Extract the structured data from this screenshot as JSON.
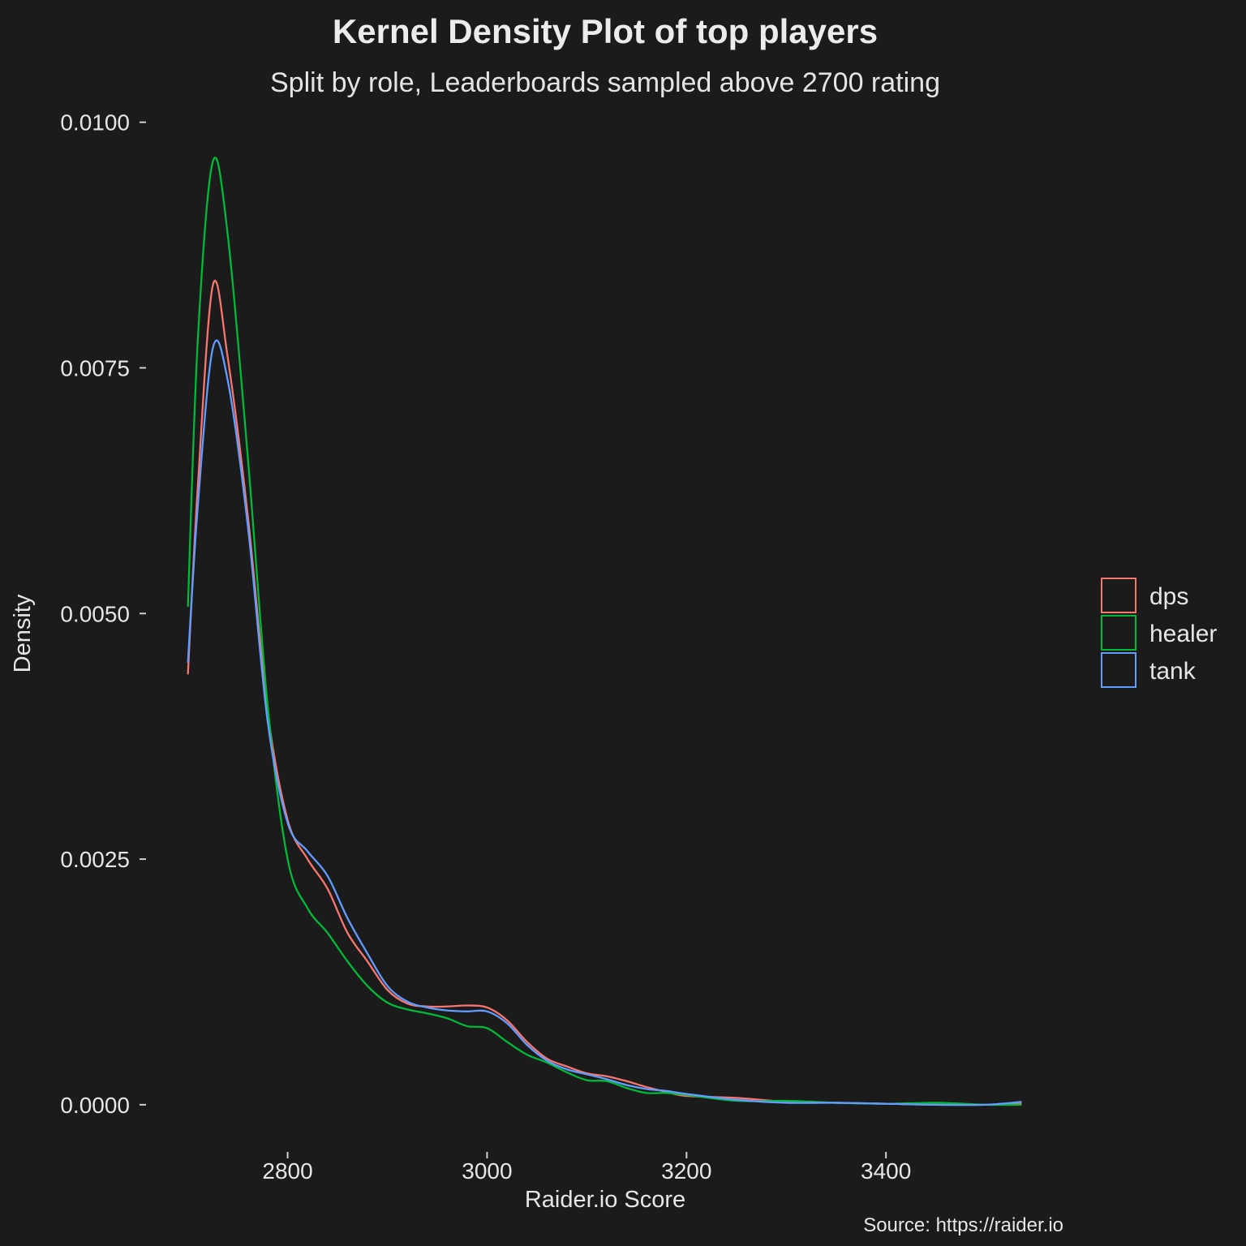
{
  "chart_data": {
    "type": "line",
    "title": "Kernel Density Plot of top players",
    "subtitle": "Split by role, Leaderboards sampled above 2700 rating",
    "xlabel": "Raider.io Score",
    "ylabel": "Density",
    "caption": "Source: https://raider.io",
    "xlim": [
      2658,
      3578
    ],
    "ylim": [
      -0.00048,
      0.01008
    ],
    "x_ticks": [
      2800,
      3000,
      3200,
      3400
    ],
    "x_tick_labels": [
      "2800",
      "3000",
      "3200",
      "3400"
    ],
    "y_ticks": [
      0,
      0.0025,
      0.005,
      0.0075,
      0.01
    ],
    "y_tick_labels": [
      "0.0000",
      "0.0025",
      "0.0050",
      "0.0075",
      "0.0100"
    ],
    "grid": false,
    "legend_position": "right",
    "x": [
      2700,
      2710,
      2725,
      2740,
      2760,
      2780,
      2800,
      2820,
      2840,
      2860,
      2880,
      2900,
      2920,
      2940,
      2960,
      2980,
      3000,
      3020,
      3040,
      3060,
      3080,
      3100,
      3120,
      3140,
      3160,
      3180,
      3200,
      3250,
      3300,
      3350,
      3400,
      3450,
      3500,
      3536
    ],
    "series": [
      {
        "name": "dps",
        "color": "#f8766d",
        "values": [
          0.00438,
          0.0063,
          0.00834,
          0.0076,
          0.006,
          0.004,
          0.0029,
          0.0025,
          0.0022,
          0.00175,
          0.00146,
          0.00117,
          0.00103,
          0.001,
          0.001,
          0.00101,
          0.00099,
          0.00086,
          0.00064,
          0.00047,
          0.00039,
          0.00032,
          0.00029,
          0.00024,
          0.00018,
          0.00013,
          9e-05,
          7e-05,
          3e-05,
          2e-05,
          1e-05,
          0.0,
          0.0,
          1e-05
        ]
      },
      {
        "name": "healer",
        "color": "#00ba38",
        "values": [
          0.00507,
          0.0078,
          0.0096,
          0.00885,
          0.0066,
          0.00406,
          0.0025,
          0.002,
          0.00175,
          0.00146,
          0.00121,
          0.00104,
          0.00097,
          0.00093,
          0.00088,
          0.0008,
          0.00078,
          0.00064,
          0.00051,
          0.00043,
          0.00033,
          0.00025,
          0.00024,
          0.00017,
          0.00012,
          0.00012,
          0.0001,
          4e-05,
          4e-05,
          2e-05,
          1e-05,
          2e-05,
          0.0,
          0.0
        ]
      },
      {
        "name": "tank",
        "color": "#619cff",
        "values": [
          0.0045,
          0.0061,
          0.0077,
          0.00737,
          0.0059,
          0.0039,
          0.00287,
          0.00258,
          0.00233,
          0.0019,
          0.00154,
          0.00121,
          0.00105,
          0.00099,
          0.00096,
          0.00095,
          0.00095,
          0.00083,
          0.00061,
          0.00045,
          0.00036,
          0.00031,
          0.00026,
          0.0002,
          0.00016,
          0.00014,
          0.00011,
          5e-05,
          2e-05,
          2e-05,
          1e-05,
          0.0,
          0.0,
          3e-05
        ]
      }
    ]
  }
}
